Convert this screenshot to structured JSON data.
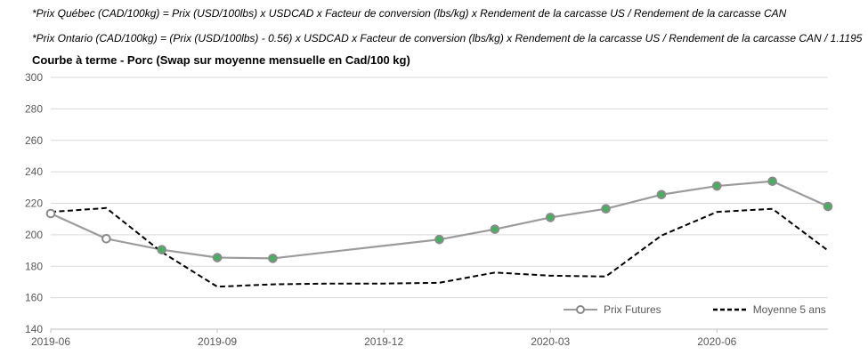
{
  "notes": {
    "line1": "*Prix Québec (CAD/100kg) = Prix (USD/100lbs) x USDCAD x Facteur de conversion (lbs/kg) x Rendement de la carcasse US / Rendement de la carcasse CAN",
    "line2": "*Prix Ontario (CAD/100kg) = (Prix (USD/100lbs) - 0.56) x USDCAD x Facteur de conversion (lbs/kg) x Rendement de la carcasse US / Rendement de la carcasse CAN / 1.1195"
  },
  "chart_data": {
    "type": "line",
    "title": "Courbe à terme - Porc (Swap sur moyenne mensuelle en Cad/100 kg)",
    "x": [
      "2019-06",
      "2019-07",
      "2019-08",
      "2019-09",
      "2019-10",
      "2019-11",
      "2019-12",
      "2020-01",
      "2020-02",
      "2020-03",
      "2020-04",
      "2020-05",
      "2020-06",
      "2020-07",
      "2020-08"
    ],
    "x_tick_indices": [
      0,
      3,
      6,
      9,
      12
    ],
    "ylim": [
      140,
      300
    ],
    "y_ticks": [
      140,
      160,
      180,
      200,
      220,
      240,
      260,
      280,
      300
    ],
    "grid": "horizontal",
    "legend_position": "inside-bottom-right",
    "series": [
      {
        "name": "Prix Futures",
        "line_style": "solid",
        "color": "#9B9B9B",
        "marker_ring_color": "#8A8A8A",
        "marker_fill_colors": {
          "open": "#FFFFFF",
          "filled": "#42B25C"
        },
        "values": [
          213.5,
          197.5,
          190.5,
          185.5,
          185,
          189,
          193,
          197,
          203.5,
          211,
          216.5,
          225.5,
          231,
          234,
          218
        ],
        "markers": [
          "open",
          "open",
          "filled",
          "filled",
          "filled",
          "none",
          "none",
          "filled",
          "filled",
          "filled",
          "filled",
          "filled",
          "filled",
          "filled",
          "filled"
        ]
      },
      {
        "name": "Moyenne 5 ans",
        "line_style": "dashed",
        "color": "#000000",
        "markers": "none",
        "values": [
          214.5,
          217,
          189,
          167,
          168.5,
          169,
          169,
          169.5,
          176,
          174,
          173.5,
          199.5,
          214.5,
          216.5,
          190
        ]
      }
    ]
  },
  "style_colors": {
    "gridline": "#D9D9D9",
    "axis_line": "#BFBFBF",
    "axis_label": "#595959",
    "legend_text": "#595959"
  }
}
